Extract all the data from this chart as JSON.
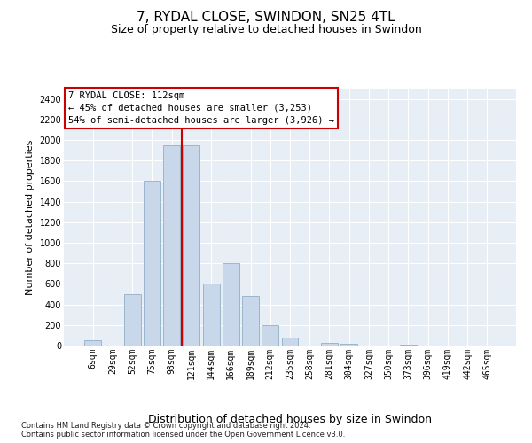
{
  "title": "7, RYDAL CLOSE, SWINDON, SN25 4TL",
  "subtitle": "Size of property relative to detached houses in Swindon",
  "xlabel": "Distribution of detached houses by size in Swindon",
  "ylabel": "Number of detached properties",
  "categories": [
    "6sqm",
    "29sqm",
    "52sqm",
    "75sqm",
    "98sqm",
    "121sqm",
    "144sqm",
    "166sqm",
    "189sqm",
    "212sqm",
    "235sqm",
    "258sqm",
    "281sqm",
    "304sqm",
    "327sqm",
    "350sqm",
    "373sqm",
    "396sqm",
    "419sqm",
    "442sqm",
    "465sqm"
  ],
  "values": [
    50,
    0,
    500,
    1600,
    1950,
    1950,
    600,
    800,
    480,
    200,
    80,
    0,
    30,
    20,
    0,
    0,
    10,
    0,
    0,
    0,
    0
  ],
  "bar_color": "#c8d8ea",
  "bar_edge_color": "#90afc8",
  "vline_color": "#cc0000",
  "vline_pos": 4.5,
  "annotation_text": "7 RYDAL CLOSE: 112sqm\n← 45% of detached houses are smaller (3,253)\n54% of semi-detached houses are larger (3,926) →",
  "annotation_box_color": "#ffffff",
  "annotation_box_edge": "#cc0000",
  "ylim": [
    0,
    2500
  ],
  "yticks": [
    0,
    200,
    400,
    600,
    800,
    1000,
    1200,
    1400,
    1600,
    1800,
    2000,
    2200,
    2400
  ],
  "bg_color": "#e8eef5",
  "grid_color": "#ffffff",
  "footer": "Contains HM Land Registry data © Crown copyright and database right 2024.\nContains public sector information licensed under the Open Government Licence v3.0.",
  "title_fontsize": 11,
  "subtitle_fontsize": 9,
  "ylabel_fontsize": 8,
  "xlabel_fontsize": 9,
  "tick_fontsize": 7,
  "annot_fontsize": 7.5,
  "footer_fontsize": 6
}
